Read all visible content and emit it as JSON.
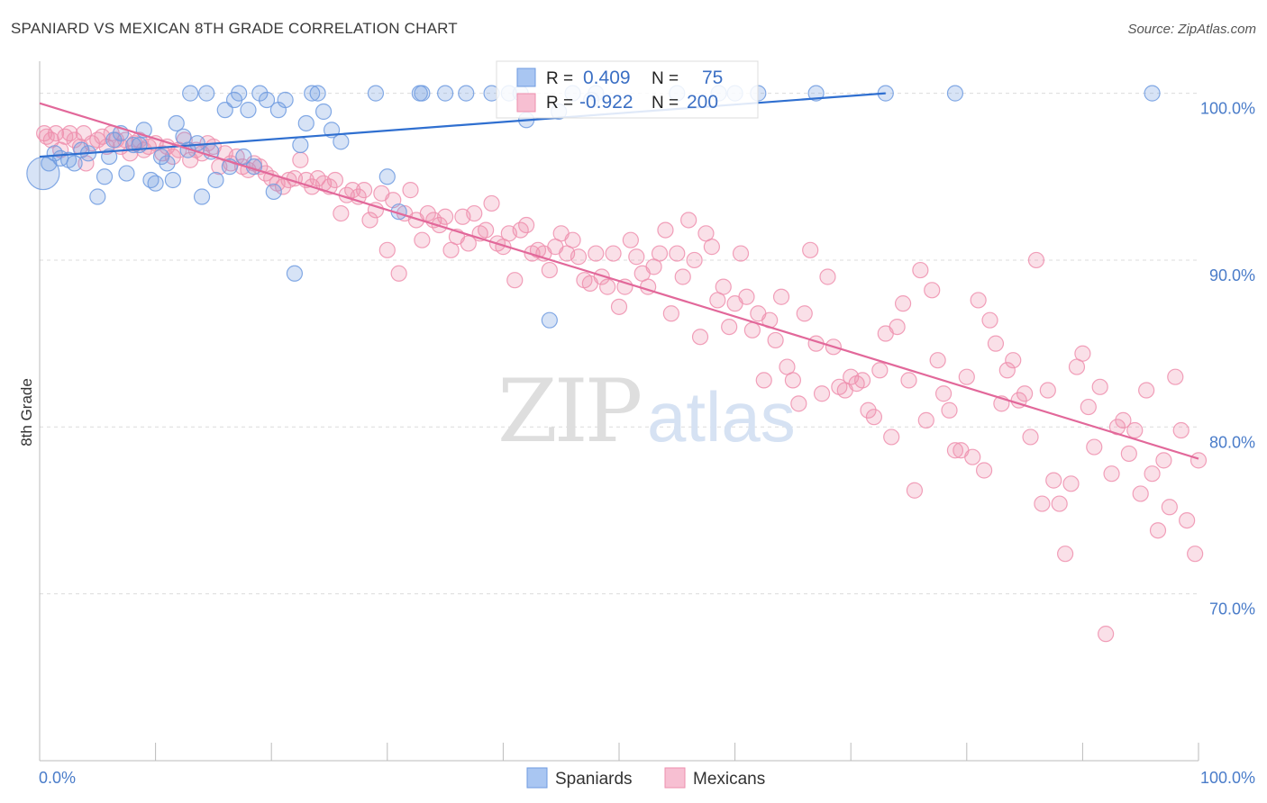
{
  "title": "SPANIARD VS MEXICAN 8TH GRADE CORRELATION CHART",
  "source": "Source: ZipAtlas.com",
  "watermark": {
    "part1": "ZIP",
    "part2": "atlas"
  },
  "legend_top": {
    "r_label": "R =",
    "n_label": "N =",
    "rows": [
      {
        "r": "0.409",
        "n": "75"
      },
      {
        "r": "-0.922",
        "n": "200"
      }
    ]
  },
  "legend_bottom": [
    "Spaniards",
    "Mexicans"
  ],
  "chart_data": {
    "type": "scatter",
    "title": "SPANIARD VS MEXICAN 8TH GRADE CORRELATION CHART",
    "xlabel": "",
    "ylabel": "8th Grade",
    "xlim": [
      0,
      100
    ],
    "ylim": [
      60,
      103
    ],
    "x_tick_labels": [
      "0.0%",
      "100.0%"
    ],
    "y_tick_labels": [
      "100.0%",
      "90.0%",
      "80.0%",
      "70.0%"
    ],
    "y_ticks": [
      100,
      90,
      80,
      70
    ],
    "grid": true,
    "legend_position": "bottom",
    "colors": {
      "spaniards": "#6f9be0",
      "mexicans": "#ee8fae",
      "spaniards_line": "#2f6fd0",
      "mexicans_line": "#e2689a"
    },
    "series": [
      {
        "name": "Spaniards",
        "r": 0.409,
        "n": 75,
        "trend": [
          [
            0,
            96.2
          ],
          [
            73,
            100.0
          ]
        ],
        "points": [
          [
            0.3,
            95.2
          ],
          [
            0.8,
            95.8
          ],
          [
            1.3,
            96.4
          ],
          [
            1.8,
            96.1
          ],
          [
            2.5,
            96.0
          ],
          [
            3.0,
            95.8
          ],
          [
            3.6,
            96.6
          ],
          [
            4.2,
            96.4
          ],
          [
            5.0,
            93.8
          ],
          [
            5.6,
            95.0
          ],
          [
            6.0,
            96.2
          ],
          [
            6.4,
            97.2
          ],
          [
            7.0,
            97.6
          ],
          [
            7.5,
            95.2
          ],
          [
            8.1,
            96.9
          ],
          [
            8.6,
            96.9
          ],
          [
            9.0,
            97.8
          ],
          [
            9.6,
            94.8
          ],
          [
            10.0,
            94.6
          ],
          [
            10.5,
            96.2
          ],
          [
            11.0,
            95.8
          ],
          [
            11.5,
            94.8
          ],
          [
            11.8,
            98.2
          ],
          [
            12.4,
            97.4
          ],
          [
            12.8,
            96.6
          ],
          [
            13.0,
            100.0
          ],
          [
            13.6,
            97.0
          ],
          [
            14.0,
            93.8
          ],
          [
            14.4,
            100.0
          ],
          [
            14.8,
            96.5
          ],
          [
            15.2,
            94.8
          ],
          [
            16.0,
            99.0
          ],
          [
            16.4,
            95.6
          ],
          [
            16.8,
            99.6
          ],
          [
            17.2,
            100.0
          ],
          [
            17.6,
            96.2
          ],
          [
            18.0,
            99.0
          ],
          [
            18.5,
            95.6
          ],
          [
            19.0,
            100.0
          ],
          [
            19.6,
            99.6
          ],
          [
            20.2,
            94.1
          ],
          [
            20.6,
            99.0
          ],
          [
            21.2,
            99.6
          ],
          [
            22.0,
            89.2
          ],
          [
            22.5,
            96.9
          ],
          [
            23.0,
            98.2
          ],
          [
            23.5,
            100.0
          ],
          [
            24.0,
            100.0
          ],
          [
            24.5,
            98.9
          ],
          [
            25.2,
            97.8
          ],
          [
            26.0,
            97.1
          ],
          [
            29.0,
            100.0
          ],
          [
            30.0,
            95.0
          ],
          [
            31.0,
            92.9
          ],
          [
            32.8,
            100.0
          ],
          [
            33.0,
            100.0
          ],
          [
            35.0,
            100.0
          ],
          [
            36.8,
            100.0
          ],
          [
            39.0,
            100.0
          ],
          [
            40.5,
            100.0
          ],
          [
            41.5,
            100.0
          ],
          [
            42.0,
            98.4
          ],
          [
            44.0,
            86.4
          ],
          [
            44.8,
            98.9
          ],
          [
            46.0,
            100.0
          ],
          [
            47.6,
            99.6
          ],
          [
            48.0,
            100.0
          ],
          [
            55.0,
            100.0
          ],
          [
            58.6,
            100.0
          ],
          [
            60.0,
            100.0
          ],
          [
            62.0,
            100.0
          ],
          [
            67.0,
            100.0
          ],
          [
            73.0,
            100.0
          ],
          [
            79.0,
            100.0
          ],
          [
            96.0,
            100.0
          ]
        ]
      },
      {
        "name": "Mexicans",
        "r": -0.922,
        "n": 200,
        "trend": [
          [
            0,
            99.4
          ],
          [
            100,
            78.1
          ]
        ],
        "points": [
          [
            0.4,
            97.6
          ],
          [
            0.6,
            97.4
          ],
          [
            1.0,
            97.2
          ],
          [
            1.4,
            97.6
          ],
          [
            1.8,
            96.6
          ],
          [
            2.2,
            97.4
          ],
          [
            2.6,
            97.6
          ],
          [
            3.0,
            97.2
          ],
          [
            3.5,
            96.8
          ],
          [
            3.8,
            97.6
          ],
          [
            4.0,
            95.8
          ],
          [
            4.5,
            97.0
          ],
          [
            5.0,
            97.2
          ],
          [
            5.4,
            97.4
          ],
          [
            5.8,
            96.8
          ],
          [
            6.2,
            97.6
          ],
          [
            6.6,
            97.2
          ],
          [
            7.0,
            96.8
          ],
          [
            7.4,
            97.2
          ],
          [
            7.8,
            96.4
          ],
          [
            8.2,
            97.0
          ],
          [
            8.6,
            97.2
          ],
          [
            9.0,
            96.6
          ],
          [
            9.4,
            96.8
          ],
          [
            10.0,
            97.0
          ],
          [
            10.6,
            96.4
          ],
          [
            11.0,
            96.8
          ],
          [
            11.5,
            96.2
          ],
          [
            12.0,
            96.6
          ],
          [
            12.5,
            97.2
          ],
          [
            13.0,
            96.0
          ],
          [
            13.5,
            96.6
          ],
          [
            14.0,
            96.4
          ],
          [
            14.5,
            97.0
          ],
          [
            15.0,
            96.8
          ],
          [
            15.5,
            95.6
          ],
          [
            16.0,
            96.4
          ],
          [
            16.5,
            95.8
          ],
          [
            17.0,
            96.2
          ],
          [
            17.5,
            95.6
          ],
          [
            18.0,
            95.4
          ],
          [
            18.5,
            95.8
          ],
          [
            19.0,
            95.6
          ],
          [
            19.5,
            95.2
          ],
          [
            20.0,
            94.9
          ],
          [
            20.5,
            94.6
          ],
          [
            21.0,
            94.4
          ],
          [
            21.5,
            94.8
          ],
          [
            22.0,
            94.9
          ],
          [
            22.5,
            96.0
          ],
          [
            23.0,
            94.8
          ],
          [
            23.5,
            94.4
          ],
          [
            24.0,
            94.9
          ],
          [
            24.5,
            94.6
          ],
          [
            25.0,
            94.4
          ],
          [
            25.5,
            94.8
          ],
          [
            26.0,
            92.8
          ],
          [
            26.5,
            93.9
          ],
          [
            27.0,
            94.2
          ],
          [
            27.5,
            93.8
          ],
          [
            28.0,
            94.2
          ],
          [
            28.5,
            92.4
          ],
          [
            29.0,
            93.0
          ],
          [
            29.5,
            94.0
          ],
          [
            30.0,
            90.6
          ],
          [
            30.5,
            93.6
          ],
          [
            31.0,
            89.2
          ],
          [
            31.5,
            92.8
          ],
          [
            32.0,
            94.2
          ],
          [
            32.5,
            92.4
          ],
          [
            33.0,
            91.2
          ],
          [
            33.5,
            92.8
          ],
          [
            34.0,
            92.4
          ],
          [
            34.5,
            92.1
          ],
          [
            35.0,
            92.6
          ],
          [
            35.5,
            90.6
          ],
          [
            36.0,
            91.4
          ],
          [
            36.5,
            92.6
          ],
          [
            37.0,
            91.0
          ],
          [
            37.5,
            92.8
          ],
          [
            38.0,
            91.6
          ],
          [
            38.5,
            91.8
          ],
          [
            39.0,
            93.4
          ],
          [
            39.5,
            91.0
          ],
          [
            40.0,
            90.8
          ],
          [
            40.5,
            91.6
          ],
          [
            41.0,
            88.8
          ],
          [
            41.5,
            91.8
          ],
          [
            42.0,
            92.1
          ],
          [
            42.5,
            90.4
          ],
          [
            43.0,
            90.6
          ],
          [
            43.5,
            90.4
          ],
          [
            44.0,
            89.4
          ],
          [
            44.5,
            90.8
          ],
          [
            45.0,
            91.6
          ],
          [
            45.5,
            90.4
          ],
          [
            46.0,
            91.2
          ],
          [
            46.5,
            90.2
          ],
          [
            47.0,
            88.8
          ],
          [
            47.5,
            88.6
          ],
          [
            48.0,
            90.4
          ],
          [
            48.5,
            89.0
          ],
          [
            49.0,
            88.4
          ],
          [
            49.5,
            90.4
          ],
          [
            50.0,
            87.2
          ],
          [
            50.5,
            88.4
          ],
          [
            51.0,
            91.2
          ],
          [
            51.5,
            90.2
          ],
          [
            52.0,
            89.2
          ],
          [
            52.5,
            88.4
          ],
          [
            53.0,
            89.6
          ],
          [
            53.5,
            90.4
          ],
          [
            54.0,
            91.8
          ],
          [
            54.5,
            86.8
          ],
          [
            55.0,
            90.4
          ],
          [
            55.5,
            89.0
          ],
          [
            56.0,
            92.4
          ],
          [
            56.5,
            90.0
          ],
          [
            57.0,
            85.4
          ],
          [
            57.5,
            91.6
          ],
          [
            58.0,
            90.8
          ],
          [
            58.5,
            87.6
          ],
          [
            59.0,
            88.4
          ],
          [
            59.5,
            86.0
          ],
          [
            60.0,
            87.4
          ],
          [
            60.5,
            90.4
          ],
          [
            61.0,
            87.8
          ],
          [
            61.5,
            85.8
          ],
          [
            62.0,
            86.8
          ],
          [
            62.5,
            82.8
          ],
          [
            63.0,
            86.4
          ],
          [
            63.5,
            85.2
          ],
          [
            64.0,
            87.8
          ],
          [
            64.5,
            83.6
          ],
          [
            65.0,
            82.8
          ],
          [
            65.5,
            81.4
          ],
          [
            66.0,
            86.8
          ],
          [
            66.5,
            90.6
          ],
          [
            67.0,
            85.0
          ],
          [
            67.5,
            82.0
          ],
          [
            68.0,
            89.0
          ],
          [
            68.5,
            84.8
          ],
          [
            69.0,
            82.4
          ],
          [
            69.5,
            82.2
          ],
          [
            70.0,
            83.0
          ],
          [
            70.5,
            82.6
          ],
          [
            71.0,
            82.8
          ],
          [
            71.5,
            81.0
          ],
          [
            72.0,
            80.6
          ],
          [
            72.5,
            83.4
          ],
          [
            73.0,
            85.6
          ],
          [
            73.5,
            79.4
          ],
          [
            74.0,
            86.0
          ],
          [
            74.5,
            87.4
          ],
          [
            75.0,
            82.8
          ],
          [
            75.5,
            76.2
          ],
          [
            76.0,
            89.4
          ],
          [
            76.5,
            80.4
          ],
          [
            77.0,
            88.2
          ],
          [
            77.5,
            84.0
          ],
          [
            78.0,
            82.0
          ],
          [
            78.5,
            81.0
          ],
          [
            79.0,
            78.6
          ],
          [
            79.5,
            78.6
          ],
          [
            80.0,
            83.0
          ],
          [
            80.5,
            78.2
          ],
          [
            81.0,
            87.6
          ],
          [
            81.5,
            77.4
          ],
          [
            82.0,
            86.4
          ],
          [
            82.5,
            85.0
          ],
          [
            83.0,
            81.4
          ],
          [
            83.5,
            83.4
          ],
          [
            84.0,
            84.0
          ],
          [
            84.5,
            81.6
          ],
          [
            85.0,
            82.0
          ],
          [
            85.5,
            79.4
          ],
          [
            86.0,
            90.0
          ],
          [
            86.5,
            75.4
          ],
          [
            87.0,
            82.2
          ],
          [
            87.5,
            76.8
          ],
          [
            88.0,
            75.4
          ],
          [
            88.5,
            72.4
          ],
          [
            89.0,
            76.6
          ],
          [
            89.5,
            83.6
          ],
          [
            90.0,
            84.4
          ],
          [
            90.5,
            81.2
          ],
          [
            91.0,
            78.8
          ],
          [
            91.5,
            82.4
          ],
          [
            92.0,
            67.6
          ],
          [
            92.5,
            77.2
          ],
          [
            93.0,
            80.0
          ],
          [
            93.5,
            80.4
          ],
          [
            94.0,
            78.4
          ],
          [
            94.5,
            79.8
          ],
          [
            95.0,
            76.0
          ],
          [
            95.5,
            82.2
          ],
          [
            96.0,
            77.2
          ],
          [
            96.5,
            73.8
          ],
          [
            97.0,
            78.0
          ],
          [
            97.5,
            75.2
          ],
          [
            98.0,
            83.0
          ],
          [
            98.5,
            79.8
          ],
          [
            99.0,
            74.4
          ],
          [
            99.7,
            72.4
          ],
          [
            100.0,
            78.0
          ]
        ]
      }
    ]
  }
}
